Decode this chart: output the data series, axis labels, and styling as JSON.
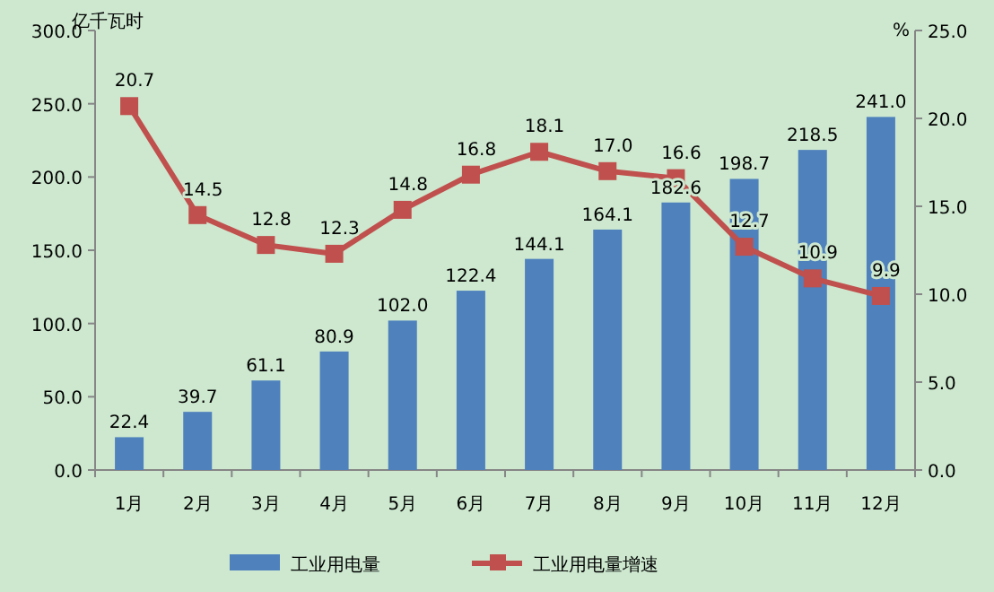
{
  "chart_data": {
    "type": "bar",
    "ylabel": "亿千瓦时",
    "y2label": "%",
    "categories": [
      "1月",
      "2月",
      "3月",
      "4月",
      "5月",
      "6月",
      "7月",
      "8月",
      "9月",
      "10月",
      "11月",
      "12月"
    ],
    "series": [
      {
        "name": "工业用电量",
        "color": "#4f81bd",
        "values": [
          22.4,
          39.7,
          61.1,
          80.9,
          102.0,
          122.4,
          144.1,
          164.1,
          182.6,
          198.7,
          218.5,
          241.0
        ],
        "value_labels": [
          "22.4",
          "39.7",
          "61.1",
          "80.9",
          "102.0",
          "122.4",
          "144.1",
          "164.1",
          "182.6",
          "198.7",
          "218.5",
          "241.0"
        ]
      },
      {
        "name": "工业用电量增速",
        "type": "line",
        "axis": "y2",
        "color": "#c0504d",
        "marker": "square",
        "values": [
          20.7,
          14.5,
          12.8,
          12.3,
          14.8,
          16.8,
          18.1,
          17.0,
          16.6,
          12.7,
          10.9,
          9.9
        ],
        "value_labels": [
          "20.7",
          "14.5",
          "12.8",
          "12.3",
          "14.8",
          "16.8",
          "18.1",
          "17.0",
          "16.6",
          "12.7",
          "10.9",
          "9.9"
        ]
      }
    ],
    "ylim": [
      0,
      300
    ],
    "yticks": [
      {
        "value": 0,
        "label": "0.0"
      },
      {
        "value": 50,
        "label": "50.0"
      },
      {
        "value": 100,
        "label": "100.0"
      },
      {
        "value": 150,
        "label": "150.0"
      },
      {
        "value": 200,
        "label": "200.0"
      },
      {
        "value": 250,
        "label": "250.0"
      },
      {
        "value": 300,
        "label": "300.0"
      }
    ],
    "y2lim": [
      0,
      25
    ],
    "y2ticks": [
      {
        "value": 0,
        "label": "0.0"
      },
      {
        "value": 5,
        "label": "5.0"
      },
      {
        "value": 10,
        "label": "10.0"
      },
      {
        "value": 15,
        "label": "15.0"
      },
      {
        "value": 20,
        "label": "20.0"
      },
      {
        "value": 25,
        "label": "25.0"
      }
    ],
    "legend": "bottom",
    "grid": false
  }
}
